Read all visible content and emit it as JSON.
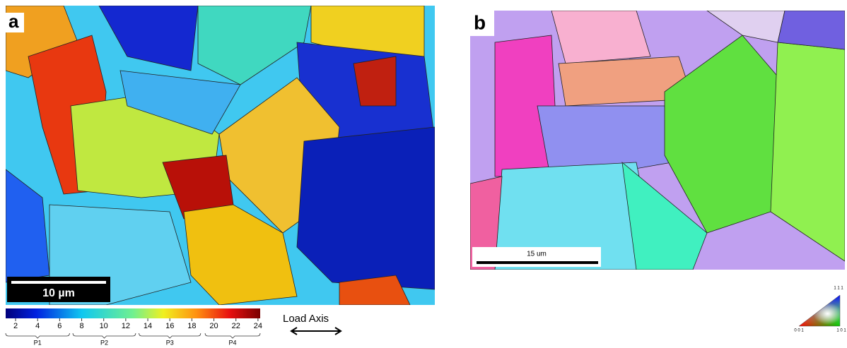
{
  "panel_a": {
    "label": "a",
    "scale_bar": "10 µm",
    "colorbar": {
      "lim": [
        1.1,
        24.2
      ],
      "ticks": [
        2,
        4,
        6,
        8,
        10,
        12,
        14,
        16,
        18,
        20,
        22,
        24
      ]
    },
    "groups": [
      {
        "label": "P1",
        "range": [
          1.1,
          6.9
        ]
      },
      {
        "label": "P2",
        "range": [
          7.2,
          12.9
        ]
      },
      {
        "label": "P3",
        "range": [
          13.2,
          18.8
        ]
      },
      {
        "label": "P4",
        "range": [
          19.2,
          24.2
        ]
      }
    ],
    "load_axis": "Load Axis"
  },
  "panel_b": {
    "label": "b",
    "scale_bar": "15 um",
    "ipf_key": {
      "top": "1 1 1",
      "left": "0 0 1",
      "right": "1 0 1"
    }
  }
}
